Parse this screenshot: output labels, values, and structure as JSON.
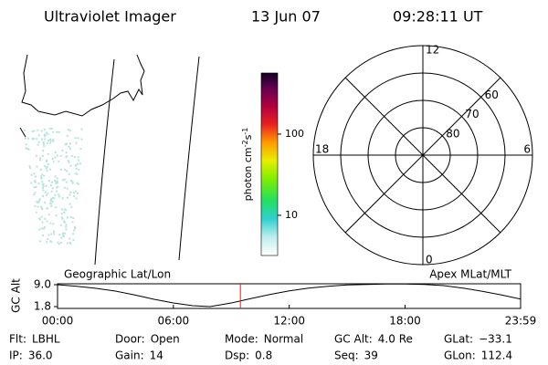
{
  "header": {
    "instrument": "Ultraviolet Imager",
    "date": "13 Jun 07",
    "time": "09:28:11 UT"
  },
  "colorbar": {
    "label": [
      "photon cm",
      "-2",
      "s",
      "-1"
    ],
    "log": true,
    "lim": [
      3.2,
      565
    ],
    "ticks": [
      10,
      100
    ]
  },
  "polar": {
    "mlt_labels": [
      "12",
      "18",
      "6",
      "0"
    ],
    "rlim": [
      90,
      50
    ],
    "lat_rings": [
      60,
      70,
      80
    ]
  },
  "altitude_plot": {
    "ylabel": "GC Alt",
    "left_title": "Geographic Lat/Lon",
    "right_title": "Apex MLat/MLT",
    "ylim": [
      1.8,
      9.0
    ],
    "yticks": [
      {
        "value": 9.0,
        "label": "9.0"
      },
      {
        "value": 1.8,
        "label": "1.8"
      }
    ],
    "xlim": [
      0,
      23.983
    ],
    "xticks": [
      {
        "value": 0,
        "label": "00:00"
      },
      {
        "value": 6,
        "label": "06:00"
      },
      {
        "value": 12,
        "label": "12:00"
      },
      {
        "value": 18,
        "label": "18:00"
      },
      {
        "value": 23.983,
        "label": "23:59"
      }
    ],
    "x": [
      0,
      1,
      2,
      3,
      4,
      5,
      6,
      7,
      7.9,
      9,
      10,
      11,
      12,
      13,
      14,
      15,
      16,
      17,
      18,
      19,
      20,
      21,
      22,
      23,
      23.983
    ],
    "values": [
      9.0,
      8.5,
      7.8,
      6.9,
      5.6,
      4.2,
      3.0,
      2.1,
      1.8,
      3.0,
      4.4,
      5.8,
      7.0,
      7.9,
      8.5,
      8.9,
      9.1,
      9.2,
      9.2,
      9.1,
      8.7,
      7.9,
      6.8,
      5.6,
      4.3
    ],
    "current_time": 9.47,
    "current_color": "#e02020"
  },
  "info": [
    [
      {
        "label": "Flt:",
        "value": "LBHL"
      },
      {
        "label": "Door:",
        "value": "Open"
      },
      {
        "label": "Mode:",
        "value": "Normal"
      },
      {
        "label": "GC Alt:",
        "value": "4.0 Re"
      },
      {
        "label": "GLat:",
        "value": "−33.1"
      }
    ],
    [
      {
        "label": "IP:",
        "value": "36.0"
      },
      {
        "label": "Gain:",
        "value": "14"
      },
      {
        "label": "Dsp:",
        "value": "0.8"
      },
      {
        "label": "Seq:",
        "value": "39"
      },
      {
        "label": "GLon:",
        "value": "112.4"
      }
    ]
  ]
}
